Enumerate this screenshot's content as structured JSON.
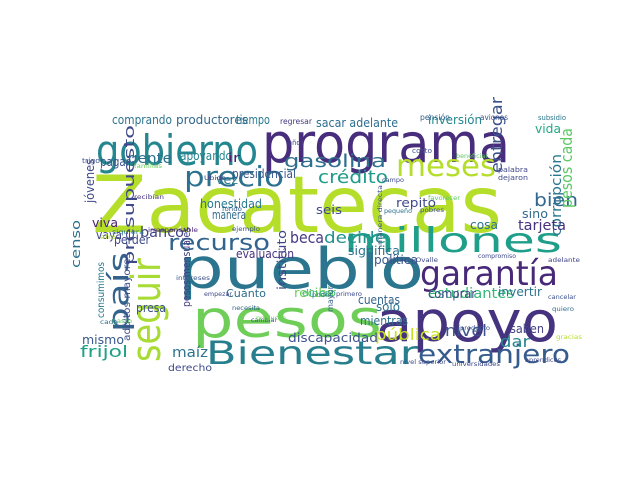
{
  "words": [
    {
      "text": "Zacatecas",
      "color": "#b5de2b"
    },
    {
      "text": "programa",
      "color": "#472d7b"
    },
    {
      "text": "pueblo",
      "color": "#2b758e"
    },
    {
      "text": "pesos",
      "color": "#6ece58"
    },
    {
      "text": "apoyo",
      "color": "#46337f"
    },
    {
      "text": "gobierno",
      "color": "#24868e"
    },
    {
      "text": "millones",
      "color": "#1f9e89"
    },
    {
      "text": "garantía",
      "color": "#482878"
    },
    {
      "text": "Bienestar",
      "color": "#277f8e"
    },
    {
      "text": "meses",
      "color": "#b5de2b"
    },
    {
      "text": "seguir",
      "color": "#a8db34"
    },
    {
      "text": "precio",
      "color": "#2c728e"
    },
    {
      "text": "recurso",
      "color": "#32648e"
    },
    {
      "text": "extranjero",
      "color": "#365c8d"
    },
    {
      "text": "país",
      "color": "#33638d"
    },
    {
      "text": "gasolina",
      "color": "#2e6f8e"
    },
    {
      "text": "crédito",
      "color": "#1e9c89"
    },
    {
      "text": "entregar",
      "color": "#3b528b"
    },
    {
      "text": "estudiantes",
      "color": "#35b779"
    },
    {
      "text": "decirle",
      "color": "#21918c"
    },
    {
      "text": "beca",
      "color": "#443983"
    },
    {
      "text": "frijol",
      "color": "#1fa088"
    },
    {
      "text": "bien",
      "color": "#31688e"
    },
    {
      "text": "presupuesto",
      "color": "#3e4989"
    },
    {
      "text": "corrupción",
      "color": "#2a788e"
    },
    {
      "text": "pesos cada",
      "color": "#5cc863"
    },
    {
      "text": "tarjeta",
      "color": "#46327e"
    },
    {
      "text": "nivel",
      "color": "#3b528b"
    },
    {
      "text": "banco",
      "color": "#414487"
    },
    {
      "text": "pública",
      "color": "#c8e020"
    },
    {
      "text": "gente",
      "color": "#2e6f8e"
    },
    {
      "text": "dar",
      "color": "#24868e"
    },
    {
      "text": "maíz",
      "color": "#2c728e"
    },
    {
      "text": "mismo",
      "color": "#38598c"
    },
    {
      "text": "censo",
      "color": "#2d708e"
    },
    {
      "text": "discapacidad",
      "color": "#3b528b"
    },
    {
      "text": "productores",
      "color": "#31688e"
    },
    {
      "text": "comprando",
      "color": "#2c728e"
    },
    {
      "text": "apoyando",
      "color": "#26828e"
    },
    {
      "text": "honestidad",
      "color": "#2a788e"
    },
    {
      "text": "evaluación",
      "color": "#46327e"
    },
    {
      "text": "cosa",
      "color": "#2d708e"
    },
    {
      "text": "repito",
      "color": "#3e4a89"
    },
    {
      "text": "comprar",
      "color": "#3e4989"
    },
    {
      "text": "significa",
      "color": "#2c728e"
    },
    {
      "text": "mientras",
      "color": "#2d708e"
    },
    {
      "text": "saben",
      "color": "#424186"
    },
    {
      "text": "invertir",
      "color": "#2c728e"
    },
    {
      "text": "cuentas",
      "color": "#33638d"
    },
    {
      "text": "política",
      "color": "#38588c"
    },
    {
      "text": "vida",
      "color": "#22a884"
    },
    {
      "text": "sino",
      "color": "#2f6b8e"
    },
    {
      "text": "jóvenes",
      "color": "#3f4788"
    },
    {
      "text": "perder",
      "color": "#3e4989"
    },
    {
      "text": "vaya",
      "color": "#404588"
    },
    {
      "text": "presa",
      "color": "#3c508b"
    },
    {
      "text": "viva",
      "color": "#481f70"
    },
    {
      "text": "pagar",
      "color": "#3b528b"
    },
    {
      "text": "tiempo",
      "color": "#2a788e"
    },
    {
      "text": "ir",
      "color": "#482173"
    },
    {
      "text": "vez",
      "color": "#2a788e"
    },
    {
      "text": "presidencial",
      "color": "#39568c"
    },
    {
      "text": "manera",
      "color": "#2f6c8e"
    },
    {
      "text": "instituto",
      "color": "#3f4788"
    },
    {
      "text": "seis",
      "color": "#3e4989"
    },
    {
      "text": "solo",
      "color": "#2c728e"
    },
    {
      "text": "inversión",
      "color": "#24868e"
    },
    {
      "text": "sacar adelante",
      "color": "#2e6e8e"
    },
    {
      "text": "recibir",
      "color": "#6ece58"
    },
    {
      "text": "pesos mensuales",
      "color": "#433e85"
    },
    {
      "text": "adultos mayores",
      "color": "#3d4e8a"
    },
    {
      "text": "Cuánto",
      "color": "#2e6e8e"
    },
    {
      "text": "dinero",
      "color": "#31b57b"
    },
    {
      "text": "derecho",
      "color": "#3f4889"
    },
    {
      "text": "mayor",
      "color": "#34618d"
    },
    {
      "text": "consumimos",
      "color": "#2a788e"
    },
    {
      "text": "regresar",
      "color": "#453781"
    },
    {
      "text": "pensión",
      "color": "#34618d"
    },
    {
      "text": "aviones",
      "color": "#3b528b"
    },
    {
      "text": "subsidio",
      "color": "#2a788e"
    },
    {
      "text": "años",
      "color": "#3f4788"
    },
    {
      "text": "costo",
      "color": "#3b528b"
    },
    {
      "text": "beneficiar",
      "color": "#5ec962"
    },
    {
      "text": "palabra",
      "color": "#404588"
    },
    {
      "text": "dejaron",
      "color": "#3e4989"
    },
    {
      "text": "trigo",
      "color": "#3b528b"
    },
    {
      "text": "familias",
      "color": "#6ece58"
    },
    {
      "text": "recibían",
      "color": "#46337f"
    },
    {
      "text": "Ubido",
      "color": "#414487"
    },
    {
      "text": "campo",
      "color": "#3e4989"
    },
    {
      "text": "manera directa",
      "color": "#3c508b"
    },
    {
      "text": "pobres",
      "color": "#3b528b"
    },
    {
      "text": "pequeño",
      "color": "#2e6f8e"
    },
    {
      "text": "favorecer",
      "color": "#5ec962"
    },
    {
      "text": "fondo",
      "color": "#34618d"
    },
    {
      "text": "irresponsable",
      "color": "#482374"
    },
    {
      "text": "siquiera",
      "color": "#2c728e"
    },
    {
      "text": "ejemplo",
      "color": "#3b528b"
    },
    {
      "text": "gasto",
      "color": "#5ec962"
    },
    {
      "text": "afro",
      "color": "#b5de2b"
    },
    {
      "text": "intereses",
      "color": "#3b528b"
    },
    {
      "text": "Ignacio Ovalle",
      "color": "#3e4989"
    },
    {
      "text": "compromiso",
      "color": "#3e4989"
    },
    {
      "text": "adelante",
      "color": "#404588"
    },
    {
      "text": "cancelar",
      "color": "#3b528b"
    },
    {
      "text": "empezar",
      "color": "#3e4989"
    },
    {
      "text": "poder",
      "color": "#2e6f8e"
    },
    {
      "text": "primero",
      "color": "#3e4989"
    },
    {
      "text": "quiero",
      "color": "#2e6f8e"
    },
    {
      "text": "necesita",
      "color": "#33638d"
    },
    {
      "text": "cambiar",
      "color": "#3e4989"
    },
    {
      "text": "producen",
      "color": "#6ece58"
    },
    {
      "text": "producto",
      "color": "#3b528b"
    },
    {
      "text": "nivel superior",
      "color": "#3e4989"
    },
    {
      "text": "universidades",
      "color": "#3e4989"
    },
    {
      "text": "aprendices",
      "color": "#3e4989"
    },
    {
      "text": "gracias",
      "color": "#b5de2b"
    },
    {
      "text": "cada",
      "color": "#2e6f8e"
    }
  ]
}
